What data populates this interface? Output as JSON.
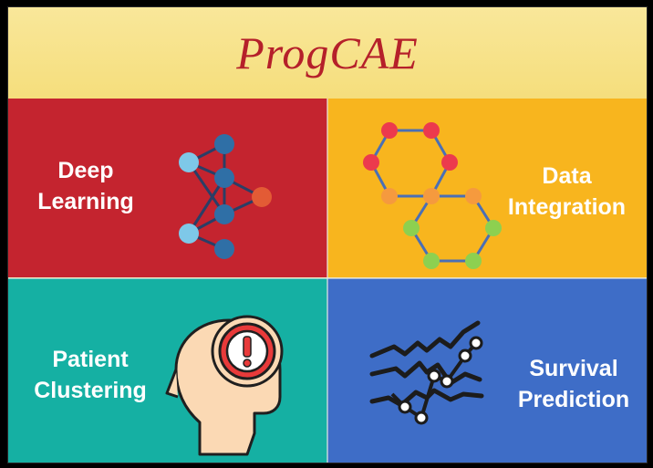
{
  "title": "ProgCAE",
  "panels": {
    "deep_learning": {
      "line1": "Deep",
      "line2": "Learning",
      "color": "#c4242f",
      "icon": "neural-network-icon"
    },
    "data_integration": {
      "line1": "Data",
      "line2": "Integration",
      "color": "#f8b51e",
      "icon": "molecule-hexagons-icon"
    },
    "patient_clustering": {
      "line1": "Patient",
      "line2": "Clustering",
      "color": "#15b0a3",
      "icon": "head-alert-icon"
    },
    "survival_prediction": {
      "line1": "Survival",
      "line2": "Prediction",
      "color": "#3e6dc7",
      "icon": "line-trends-icon"
    }
  },
  "colors": {
    "title_band": "#f7e07b",
    "title_text": "#b5202a"
  }
}
